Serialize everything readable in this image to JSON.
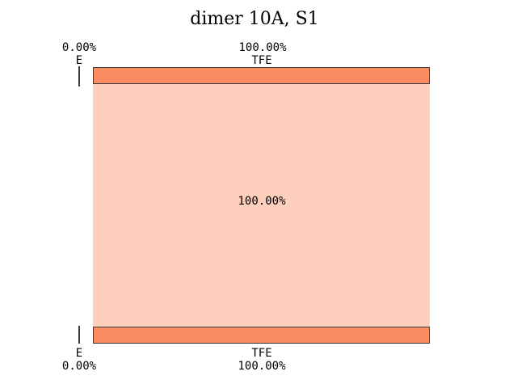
{
  "chart_data": {
    "type": "sankey",
    "title": "dimer 10A, S1",
    "layout": "top row = initial state populations, bottom row = final state populations, shaded band = flow between them",
    "top": {
      "e": {
        "label": "E",
        "pct_label": "0.00%",
        "value": 0.0
      },
      "tfe": {
        "label": "TFE",
        "pct_label": "100.00%",
        "value": 100.0
      }
    },
    "bottom": {
      "e": {
        "label": "E",
        "pct_label": "0.00%",
        "value": 0.0
      },
      "tfe": {
        "label": "TFE",
        "pct_label": "100.00%",
        "value": 100.0
      }
    },
    "flows": [
      {
        "from": "TFE",
        "to": "TFE",
        "pct_label": "100.00%",
        "value": 100.0
      }
    ],
    "colors": {
      "node_fill": "#fc8d62",
      "node_border": "#3a3a3a",
      "flow_fill": "#fdd2c0",
      "background": "#ffffff",
      "text": "#000000"
    }
  }
}
